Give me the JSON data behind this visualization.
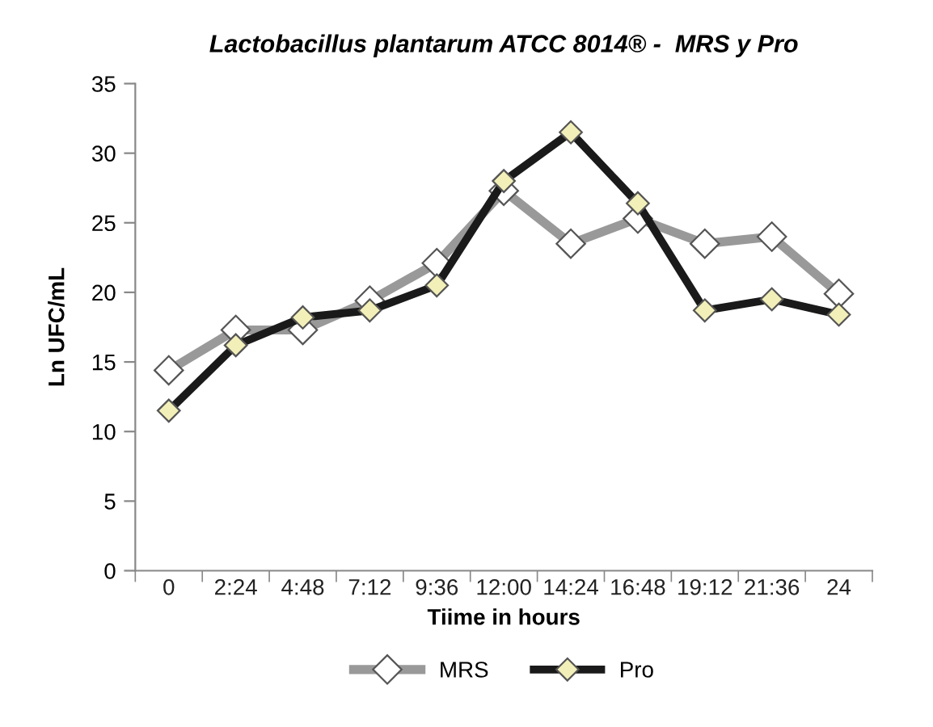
{
  "chart_data": {
    "type": "line",
    "title": "Lactobacillus plantarum ATCC 8014® -  MRS y Pro",
    "xlabel": "Tiime in hours",
    "ylabel": "Ln UFC/mL",
    "categories": [
      "0",
      "2:24",
      "4:48",
      "7:12",
      "9:36",
      "12:00",
      "14:24",
      "16:48",
      "19:12",
      "21:36",
      "24"
    ],
    "series": [
      {
        "name": "MRS",
        "color": "#999999",
        "values": [
          14.4,
          17.3,
          17.3,
          19.4,
          22.1,
          27.3,
          23.5,
          25.3,
          23.5,
          24.0,
          19.9
        ]
      },
      {
        "name": "Pro",
        "color": "#1a1a1a",
        "values": [
          11.5,
          16.2,
          18.2,
          18.7,
          20.5,
          28.0,
          31.5,
          26.4,
          18.7,
          19.5,
          18.4
        ]
      }
    ],
    "ylim": [
      0,
      35
    ],
    "yticks": [
      0,
      5,
      10,
      15,
      20,
      25,
      30,
      35
    ],
    "grid": false,
    "legend": "bottom",
    "marker": "diamond",
    "line_style": "solid"
  }
}
